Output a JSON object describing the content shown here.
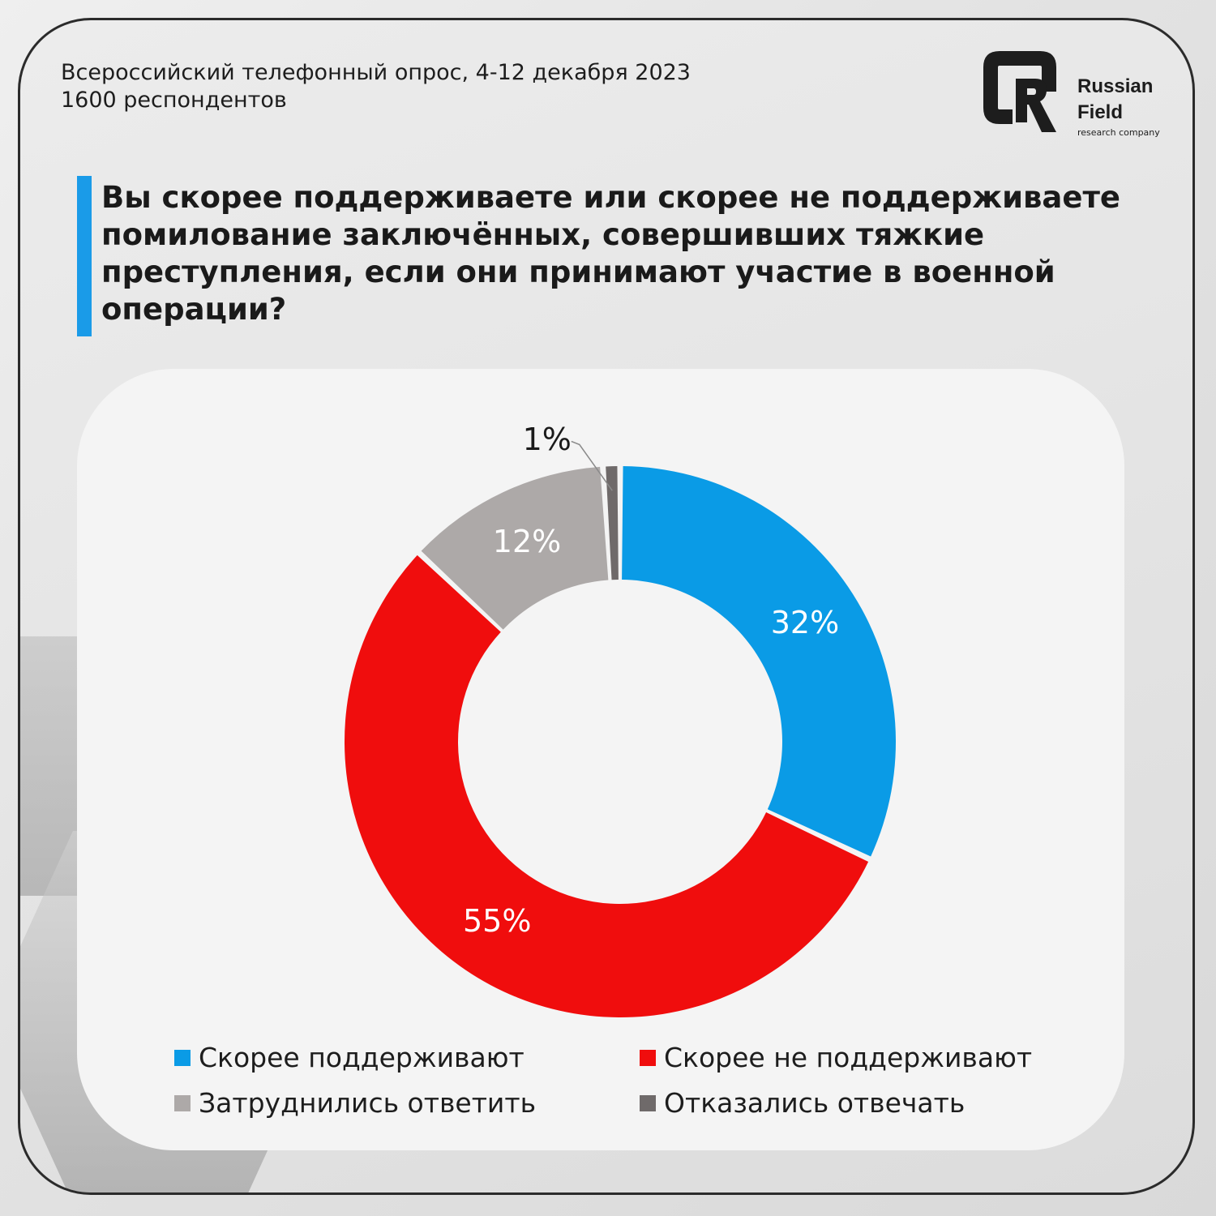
{
  "header": {
    "subtitle_line1": "Всероссийский телефонный опрос, 4-12 декабря 2023",
    "subtitle_line2": "1600 респондентов"
  },
  "logo": {
    "name_line1": "Russian",
    "name_line2": "Field",
    "tagline": "research company",
    "icon": "rf-logo-icon"
  },
  "chart_data": {
    "type": "pie",
    "donut": true,
    "title": "Вы скорее поддерживаете или скорее не поддерживаете помилование заключённых, совершивших тяжкие преступления, если они принимают участие в военной операции?",
    "title_lines": [
      "Вы скорее поддерживаете или скорее не поддерживаете",
      "помилование заключённых, совершивших тяжкие",
      "преступления, если они принимают участие в военной",
      "операции?"
    ],
    "slices": [
      {
        "name": "Скорее поддерживают",
        "value": 32,
        "label": "32%",
        "color": "#0a9be6"
      },
      {
        "name": "Скорее не поддерживают",
        "value": 55,
        "label": "55%",
        "color": "#f00d0d"
      },
      {
        "name": "Затруднились ответить",
        "value": 12,
        "label": "12%",
        "color": "#ada9a8"
      },
      {
        "name": "Отказались отвечать",
        "value": 1,
        "label": "1%",
        "color": "#6f6a6a"
      }
    ],
    "legend_position": "bottom"
  }
}
